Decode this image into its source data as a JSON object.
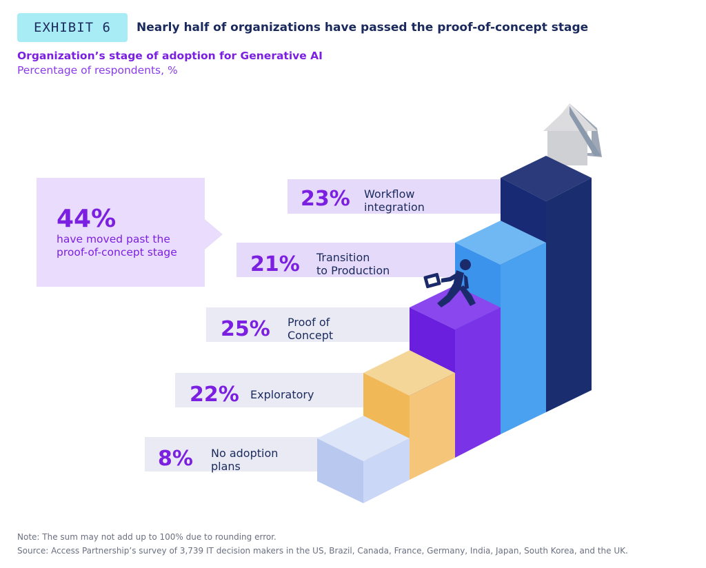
{
  "exhibit": {
    "badge": "EXHIBIT 6",
    "headline": "Nearly half of organizations have passed the proof-of-concept stage"
  },
  "chart_data": {
    "type": "bar",
    "title": "Organization’s stage of adoption for Generative AI",
    "ylabel": "Percentage of respondents, %",
    "categories": [
      "No adoption plans",
      "Exploratory",
      "Proof of Concept",
      "Transition to Production",
      "Workflow integration"
    ],
    "values": [
      8,
      22,
      25,
      21,
      23
    ],
    "percent_labels": [
      "8%",
      "22%",
      "25%",
      "21%",
      "23%"
    ],
    "display_labels": [
      "No adoption\nplans",
      "Exploratory",
      "Proof of\nConcept",
      "Transition\nto Production",
      "Workflow\nintegration"
    ],
    "colors": [
      "#c9d6f5",
      "#f5b85a",
      "#7c2de8",
      "#4ba3f2",
      "#1b2a6b"
    ]
  },
  "callout": {
    "percent": "44%",
    "text": "have moved past the proof-of-concept stage"
  },
  "notes": {
    "note": "Note: The sum may not add up to 100% due to rounding error.",
    "source": "Source: Access Partnership’s survey of 3,739 IT decision makers in the US, Brazil, Canada, France, Germany, India, Japan, South Korea, and the UK."
  },
  "icons": {
    "person": "walking-businessperson-icon",
    "arrow": "up-arrow-icon"
  }
}
